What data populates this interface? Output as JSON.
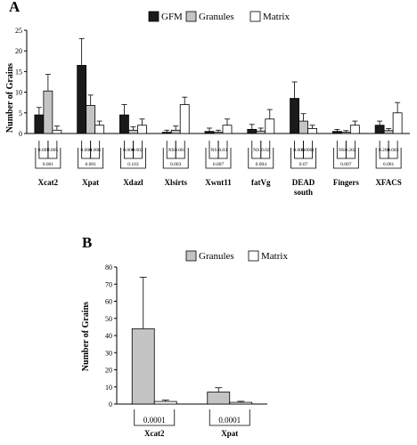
{
  "colors": {
    "GFM": "#1a1a1a",
    "Granules": "#c4c4c4",
    "Matrix": "#ffffff",
    "stroke": "#000000"
  },
  "chart_data": [
    {
      "panel": "A",
      "type": "bar",
      "ylabel": "Number of Grains",
      "ylim": [
        0,
        25
      ],
      "yticks": [
        0,
        5,
        10,
        15,
        20,
        25
      ],
      "legend": [
        "GFM",
        "Granules",
        "Matrix"
      ],
      "legend_position": "top-center",
      "categories": [
        "Xcat2",
        "Xpat",
        "Xdazl",
        "Xlsirts",
        "Xwnt11",
        "fatVg",
        "DEAD south",
        "Fingers",
        "XFACS"
      ],
      "category_lines": [
        [
          "Xcat2"
        ],
        [
          "Xpat"
        ],
        [
          "Xdazl"
        ],
        [
          "Xlsirts"
        ],
        [
          "Xwnt11"
        ],
        [
          "fatVg"
        ],
        [
          "DEAD",
          "south"
        ],
        [
          "Fingers"
        ],
        [
          "XFACS"
        ]
      ],
      "series": [
        {
          "name": "GFM",
          "values": [
            4.5,
            16.5,
            4.5,
            0.3,
            0.5,
            1.0,
            8.5,
            0.5,
            2.0
          ],
          "errors": [
            1.8,
            6.5,
            2.5,
            0.5,
            0.8,
            1.2,
            4.0,
            0.5,
            1.0
          ]
        },
        {
          "name": "Granules",
          "values": [
            10.3,
            6.8,
            0.8,
            0.8,
            0.3,
            0.6,
            3.0,
            0.3,
            0.7
          ],
          "errors": [
            4.0,
            2.5,
            0.8,
            1.0,
            0.5,
            0.7,
            1.8,
            0.4,
            0.5
          ]
        },
        {
          "name": "Matrix",
          "values": [
            0.8,
            2.0,
            2.0,
            7.0,
            2.0,
            3.5,
            1.2,
            2.0,
            5.0
          ],
          "errors": [
            1.0,
            1.0,
            1.5,
            1.8,
            1.5,
            2.3,
            0.8,
            1.0,
            2.5
          ]
        }
      ],
      "stats": [
        {
          "pair1": "0.007",
          "pair2": "0.005",
          "outer": "0.001"
        },
        {
          "pair1": "0.000",
          "pair2": "0.008",
          "outer": "0.001"
        },
        {
          "pair1": "0.000",
          "pair2": "0.602",
          "outer": "0.103"
        },
        {
          "pair1": "NS",
          "pair2": "0.001",
          "outer": "0.003"
        },
        {
          "pair1": "NS",
          "pair2": "0.03",
          "outer": "0.007"
        },
        {
          "pair1": "NS",
          "pair2": "0.02",
          "outer": "0.004"
        },
        {
          "pair1": "0.000",
          "pair2": "0.0001",
          "outer": "0.07"
        },
        {
          "pair1": "NS",
          "pair2": "0.202",
          "outer": "0.007"
        },
        {
          "pair1": "0.208",
          "pair2": "0.003",
          "outer": "0.001"
        }
      ]
    },
    {
      "panel": "B",
      "type": "bar",
      "ylabel": "Number of Grains",
      "ylim": [
        0,
        80
      ],
      "yticks": [
        0,
        10,
        20,
        30,
        40,
        50,
        60,
        70,
        80
      ],
      "legend": [
        "Granules",
        "Matrix"
      ],
      "legend_position": "top-center",
      "categories": [
        "Xcat2",
        "Xpat"
      ],
      "series": [
        {
          "name": "Granules",
          "values": [
            44,
            7
          ],
          "errors": [
            30,
            2.5
          ]
        },
        {
          "name": "Matrix",
          "values": [
            1.5,
            1.0
          ],
          "errors": [
            0.8,
            0.6
          ]
        }
      ],
      "stats": [
        "0.0001",
        "0.0001"
      ]
    }
  ]
}
